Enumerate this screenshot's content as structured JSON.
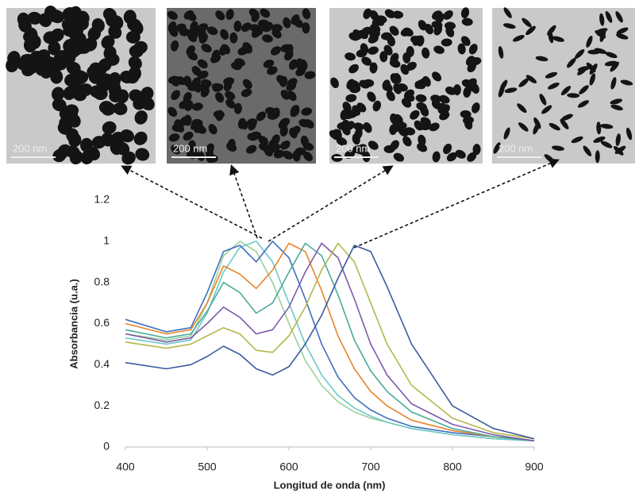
{
  "chart_data": {
    "type": "line",
    "xlabel": "Longitud de onda (nm)",
    "ylabel": "Absorbancia (u.a.)",
    "x": [
      400,
      450,
      480,
      500,
      520,
      540,
      560,
      580,
      600,
      620,
      640,
      660,
      680,
      700,
      720,
      750,
      800,
      850,
      900
    ],
    "xlim": [
      400,
      900
    ],
    "xticks": [
      400,
      500,
      600,
      700,
      800,
      900
    ],
    "ylim": [
      0,
      1.2
    ],
    "yticks": [
      0,
      0.2,
      0.4,
      0.6,
      0.8,
      1,
      1.2
    ],
    "grid": false,
    "series": [
      {
        "color": "#9bd09b",
        "values": [
          0.55,
          0.52,
          0.54,
          0.7,
          0.93,
          1.0,
          0.95,
          0.8,
          0.6,
          0.42,
          0.3,
          0.22,
          0.17,
          0.14,
          0.12,
          0.09,
          0.06,
          0.04,
          0.03
        ]
      },
      {
        "color": "#6cc8c8",
        "values": [
          0.53,
          0.5,
          0.52,
          0.65,
          0.85,
          0.97,
          1.0,
          0.9,
          0.7,
          0.5,
          0.35,
          0.25,
          0.19,
          0.15,
          0.12,
          0.09,
          0.06,
          0.04,
          0.03
        ]
      },
      {
        "color": "#3f6fbf",
        "values": [
          0.62,
          0.56,
          0.58,
          0.75,
          0.95,
          0.98,
          0.9,
          1.0,
          0.92,
          0.72,
          0.5,
          0.34,
          0.24,
          0.18,
          0.14,
          0.1,
          0.07,
          0.05,
          0.03
        ]
      },
      {
        "color": "#e8842a",
        "values": [
          0.6,
          0.55,
          0.57,
          0.7,
          0.88,
          0.84,
          0.77,
          0.86,
          0.99,
          0.95,
          0.76,
          0.54,
          0.38,
          0.27,
          0.2,
          0.13,
          0.08,
          0.05,
          0.03
        ]
      },
      {
        "color": "#4aab9a",
        "values": [
          0.57,
          0.53,
          0.55,
          0.66,
          0.8,
          0.75,
          0.65,
          0.7,
          0.85,
          0.99,
          0.93,
          0.74,
          0.52,
          0.37,
          0.27,
          0.17,
          0.09,
          0.05,
          0.03
        ]
      },
      {
        "color": "#7e5aa8",
        "values": [
          0.55,
          0.51,
          0.53,
          0.6,
          0.68,
          0.63,
          0.55,
          0.57,
          0.68,
          0.85,
          0.99,
          0.92,
          0.72,
          0.5,
          0.35,
          0.21,
          0.11,
          0.06,
          0.03
        ]
      },
      {
        "color": "#b3b84a",
        "values": [
          0.51,
          0.48,
          0.5,
          0.54,
          0.58,
          0.55,
          0.47,
          0.46,
          0.54,
          0.68,
          0.86,
          0.99,
          0.9,
          0.7,
          0.5,
          0.3,
          0.14,
          0.07,
          0.04
        ]
      },
      {
        "color": "#3b5aa0",
        "values": [
          0.41,
          0.38,
          0.4,
          0.44,
          0.49,
          0.45,
          0.38,
          0.35,
          0.39,
          0.5,
          0.64,
          0.82,
          0.98,
          0.95,
          0.78,
          0.5,
          0.2,
          0.09,
          0.04
        ]
      }
    ]
  },
  "images": [
    {
      "scale_label": "200 nm"
    },
    {
      "scale_label": "200 nm"
    },
    {
      "scale_label": "200 nm"
    },
    {
      "scale_label": "200 nm"
    }
  ]
}
